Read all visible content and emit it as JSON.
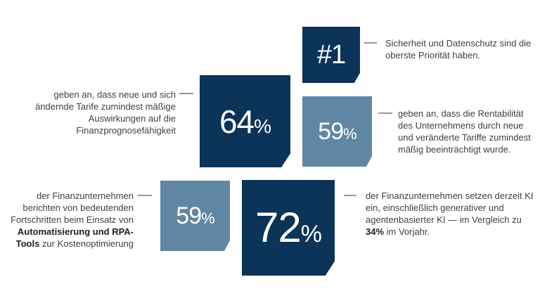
{
  "stats": [
    {
      "value": "#1",
      "suffix": "",
      "text": "Sicherheit und Datenschutz sind die oberste Priorität haben."
    },
    {
      "value": "64",
      "suffix": "%",
      "text": "geben an, dass neue und sich ändernde Tarife zumindest mäßige Auswirkungen auf die Finanzprognosefähigkeit"
    },
    {
      "value": "59",
      "suffix": "%",
      "text": "geben an, dass die Rentabilität des Unternehmens durch neue und veränderte Tariffe zumindest mäßig beeinträchtigt wurde."
    },
    {
      "value": "59",
      "suffix": "%",
      "text_parts": {
        "pre": "der Finanzunternehmen berichten von bedeutenden Fortschritten beim Einsatz von ",
        "bold": "Automatisierung und RPA-Tools",
        "post": " zur Kostenoptimierung"
      }
    },
    {
      "value": "72",
      "suffix": "%",
      "text_parts": {
        "pre": "der Finanzunternehmen setzen derzeit KI ein, einschließlich generativer und agentenbasierter KI — im Vergleich zu ",
        "bold": "34%",
        "post": " im Vorjahr."
      }
    }
  ],
  "colors": {
    "dark_tile": "#0c3358",
    "light_tile": "#5f87a3",
    "connector": "#9a9a9a"
  }
}
